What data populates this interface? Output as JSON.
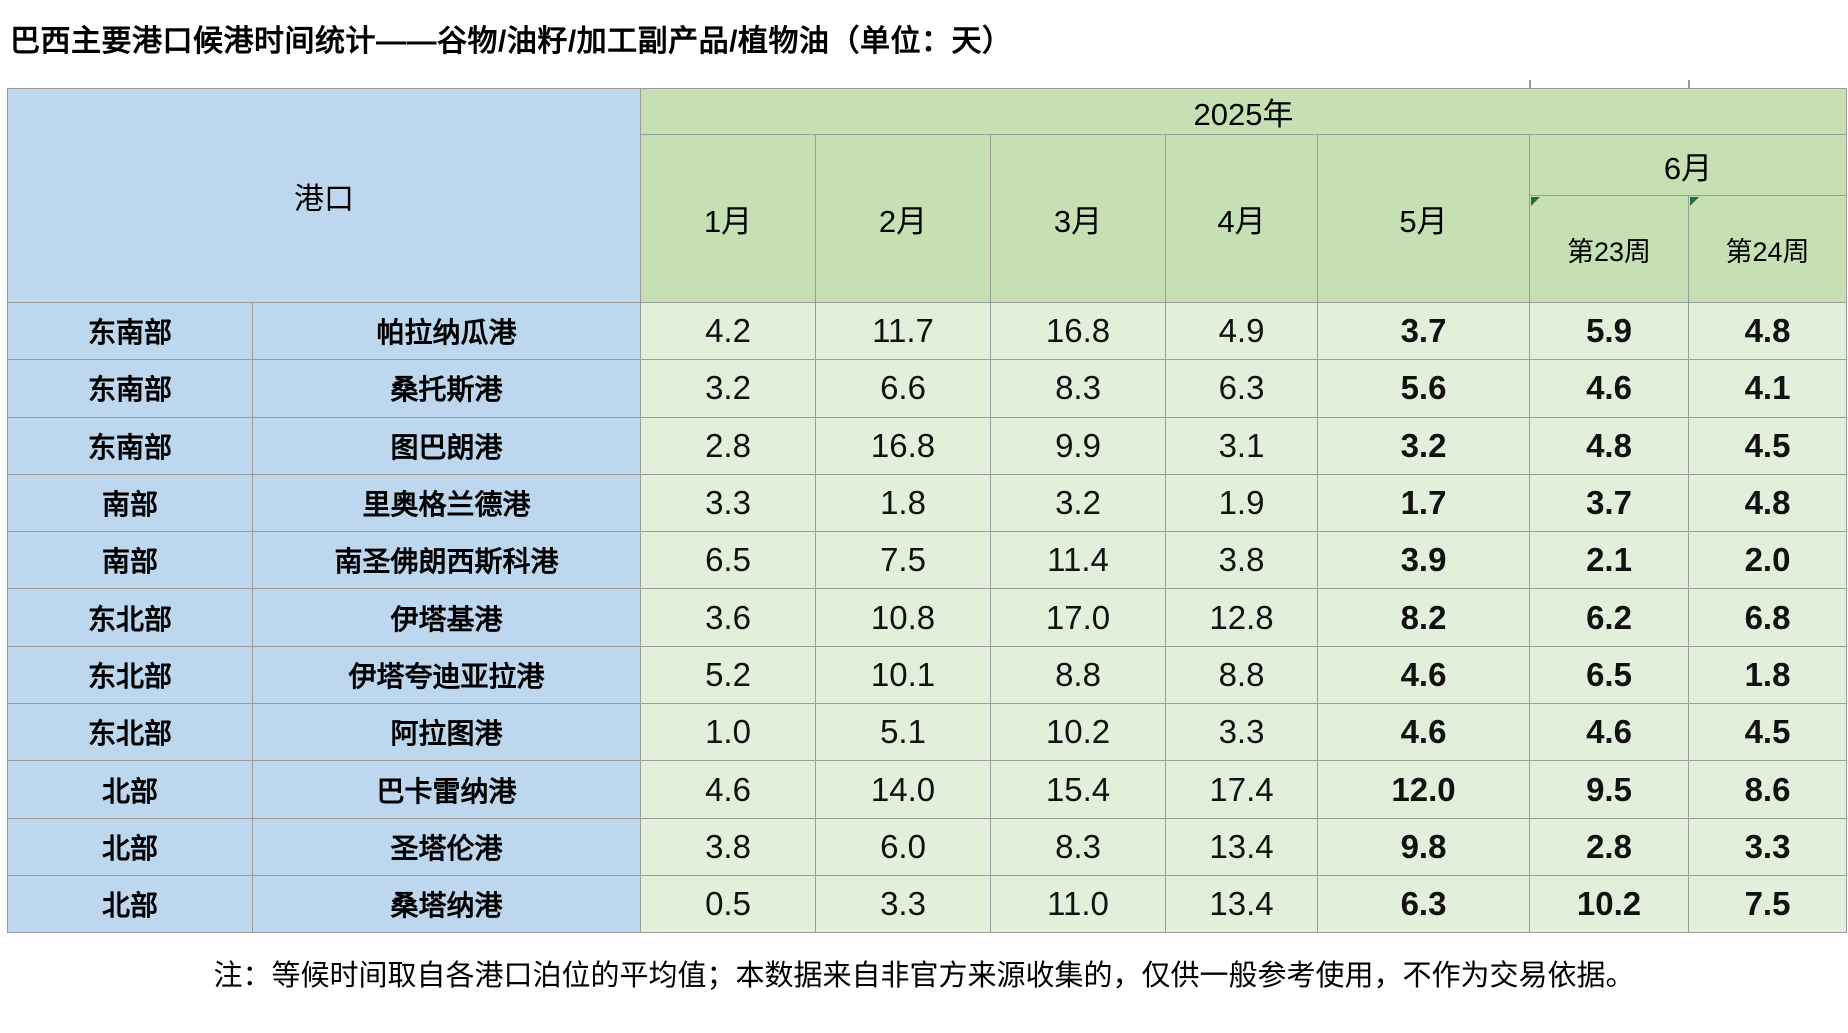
{
  "title": "巴西主要港口候港时间统计——谷物/油籽/加工副产品/植物油（单位：天）",
  "table": {
    "port_header": "港口",
    "year_header": "2025年",
    "june_header": "6月",
    "month_headers": [
      "1月",
      "2月",
      "3月",
      "4月",
      "5月"
    ],
    "week_headers": [
      "第23周",
      "第24周"
    ],
    "rows": [
      {
        "region": "东南部",
        "port": "帕拉纳瓜港",
        "values": [
          "4.2",
          "11.7",
          "16.8",
          "4.9",
          "3.7",
          "5.9",
          "4.8"
        ]
      },
      {
        "region": "东南部",
        "port": "桑托斯港",
        "values": [
          "3.2",
          "6.6",
          "8.3",
          "6.3",
          "5.6",
          "4.6",
          "4.1"
        ]
      },
      {
        "region": "东南部",
        "port": "图巴朗港",
        "values": [
          "2.8",
          "16.8",
          "9.9",
          "3.1",
          "3.2",
          "4.8",
          "4.5"
        ]
      },
      {
        "region": "南部",
        "port": "里奥格兰德港",
        "values": [
          "3.3",
          "1.8",
          "3.2",
          "1.9",
          "1.7",
          "3.7",
          "4.8"
        ]
      },
      {
        "region": "南部",
        "port": "南圣佛朗西斯科港",
        "values": [
          "6.5",
          "7.5",
          "11.4",
          "3.8",
          "3.9",
          "2.1",
          "2.0"
        ]
      },
      {
        "region": "东北部",
        "port": "伊塔基港",
        "values": [
          "3.6",
          "10.8",
          "17.0",
          "12.8",
          "8.2",
          "6.2",
          "6.8"
        ]
      },
      {
        "region": "东北部",
        "port": "伊塔夸迪亚拉港",
        "values": [
          "5.2",
          "10.1",
          "8.8",
          "8.8",
          "4.6",
          "6.5",
          "1.8"
        ]
      },
      {
        "region": "东北部",
        "port": "阿拉图港",
        "values": [
          "1.0",
          "5.1",
          "10.2",
          "3.3",
          "4.6",
          "4.6",
          "4.5"
        ]
      },
      {
        "region": "北部",
        "port": "巴卡雷纳港",
        "values": [
          "4.6",
          "14.0",
          "15.4",
          "17.4",
          "12.0",
          "9.5",
          "8.6"
        ]
      },
      {
        "region": "北部",
        "port": "圣塔伦港",
        "values": [
          "3.8",
          "6.0",
          "8.3",
          "13.4",
          "9.8",
          "2.8",
          "3.3"
        ]
      },
      {
        "region": "北部",
        "port": "桑塔纳港",
        "values": [
          "0.5",
          "3.3",
          "11.0",
          "13.4",
          "6.3",
          "10.2",
          "7.5"
        ]
      }
    ]
  },
  "note": "注：等候时间取自各港口泊位的平均值；本数据来自非官方来源收集的，仅供一般参考使用，不作为交易依据。",
  "colors": {
    "header_blue": "#bdd7ee",
    "header_green": "#c6e0b4",
    "cell_green": "#e2efda",
    "grid_line": "#9b9b9b",
    "corner_triangle_green": "#1e7145"
  }
}
